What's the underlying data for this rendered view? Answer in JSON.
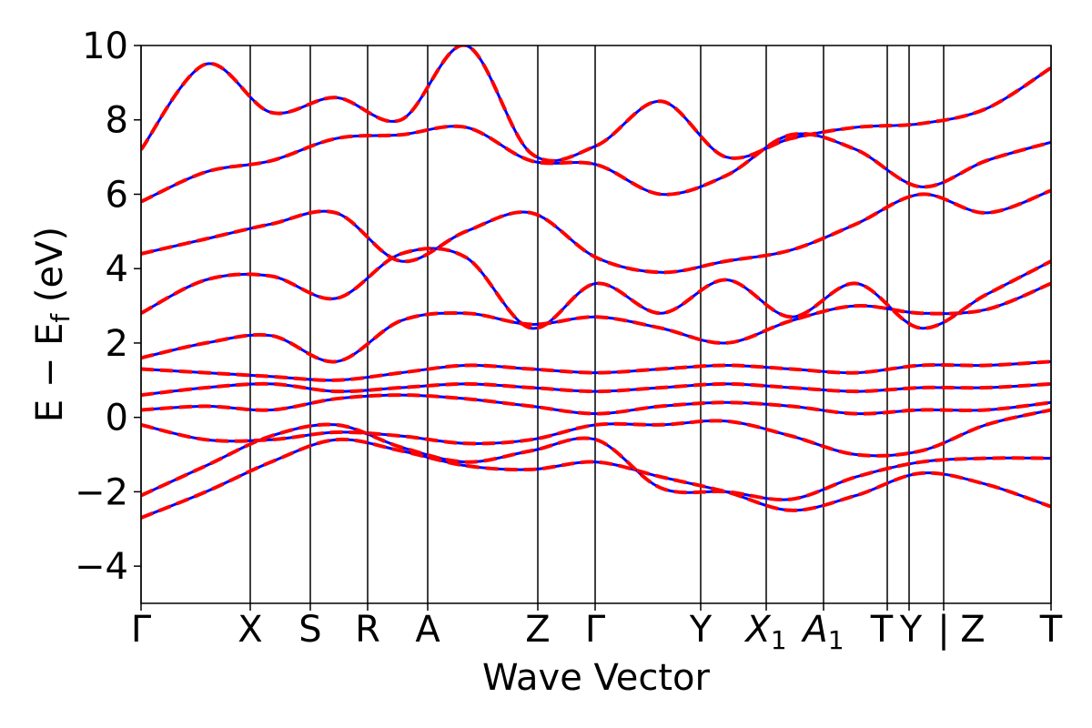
{
  "chart_data": {
    "type": "line",
    "title": "",
    "xlabel": "Wave Vector",
    "ylabel_main": "E − E",
    "ylabel_sub": "f",
    "ylabel_unit": " (eV)",
    "ylim": [
      -5,
      10
    ],
    "yticks": [
      -4,
      -2,
      0,
      2,
      4,
      6,
      8,
      10
    ],
    "ytick_labels": [
      "−4",
      "−2",
      "0",
      "2",
      "4",
      "6",
      "8",
      "10"
    ],
    "xlim": [
      0,
      1
    ],
    "kpoints": [
      {
        "pos": 0.0,
        "label": "Γ",
        "sub": ""
      },
      {
        "pos": 0.12,
        "label": "X",
        "sub": ""
      },
      {
        "pos": 0.186,
        "label": "S",
        "sub": ""
      },
      {
        "pos": 0.249,
        "label": "R",
        "sub": ""
      },
      {
        "pos": 0.315,
        "label": "A",
        "sub": ""
      },
      {
        "pos": 0.436,
        "label": "Z",
        "sub": ""
      },
      {
        "pos": 0.499,
        "label": "Γ",
        "sub": ""
      },
      {
        "pos": 0.615,
        "label": "Y",
        "sub": ""
      },
      {
        "pos": 0.687,
        "label": "X",
        "sub": "1"
      },
      {
        "pos": 0.75,
        "label": "A",
        "sub": "1"
      },
      {
        "pos": 0.82,
        "label": "T",
        "sub": ""
      },
      {
        "pos": 0.844,
        "label": "Y",
        "sub": ""
      },
      {
        "pos": 0.882,
        "label": "Z",
        "sub": ""
      },
      {
        "pos": 1.0,
        "label": "T",
        "sub": ""
      }
    ],
    "path_break": {
      "pos": 0.882,
      "label": "|"
    },
    "grid": false,
    "series": [
      {
        "color": "#ff0000",
        "style": "dashed",
        "bands": [
          [
            -2.7,
            -2.0,
            -1.2,
            -0.6,
            -0.9,
            -1.3,
            -1.4,
            -1.2,
            -1.6,
            -2.0,
            -2.5,
            -2.1,
            -1.5,
            -1.8,
            -2.4
          ],
          [
            -2.1,
            -1.3,
            -0.5,
            -0.2,
            -0.8,
            -1.2,
            -0.9,
            -0.6,
            -1.9,
            -2.0,
            -2.2,
            -1.6,
            -1.2,
            -1.1,
            -1.1
          ],
          [
            -0.2,
            -0.6,
            -0.6,
            -0.4,
            -0.5,
            -0.7,
            -0.6,
            -0.2,
            -0.2,
            -0.1,
            -0.5,
            -1.0,
            -0.9,
            -0.2,
            0.2
          ],
          [
            0.2,
            0.3,
            0.2,
            0.5,
            0.6,
            0.5,
            0.3,
            0.1,
            0.3,
            0.4,
            0.3,
            0.1,
            0.2,
            0.2,
            0.4
          ],
          [
            0.6,
            0.8,
            0.9,
            0.7,
            0.8,
            0.9,
            0.8,
            0.7,
            0.8,
            0.9,
            0.8,
            0.7,
            0.8,
            0.8,
            0.9
          ],
          [
            1.3,
            1.2,
            1.1,
            1.0,
            1.2,
            1.4,
            1.3,
            1.2,
            1.3,
            1.4,
            1.3,
            1.2,
            1.4,
            1.4,
            1.5
          ],
          [
            1.6,
            2.0,
            2.2,
            1.5,
            2.6,
            2.8,
            2.5,
            2.7,
            2.4,
            2.0,
            2.6,
            3.0,
            2.8,
            2.9,
            3.6
          ],
          [
            2.8,
            3.7,
            3.8,
            3.2,
            4.4,
            4.3,
            2.4,
            3.6,
            2.8,
            3.7,
            2.7,
            3.6,
            2.4,
            3.3,
            4.2
          ],
          [
            4.4,
            4.8,
            5.2,
            5.5,
            4.2,
            5.0,
            5.5,
            4.3,
            3.9,
            4.2,
            4.5,
            5.2,
            6.0,
            5.5,
            6.1
          ],
          [
            5.8,
            6.6,
            6.9,
            7.5,
            7.6,
            7.8,
            6.9,
            6.8,
            6.0,
            6.5,
            7.6,
            7.2,
            6.2,
            6.9,
            7.4
          ],
          [
            7.2,
            9.5,
            8.2,
            8.6,
            8.0,
            10.0,
            7.1,
            7.3,
            8.5,
            7.0,
            7.5,
            7.8,
            7.9,
            8.3,
            9.4
          ]
        ]
      },
      {
        "color": "#0000ff",
        "style": "solid",
        "bands": [
          [
            -2.7,
            -2.0,
            -1.2,
            -0.6,
            -0.9,
            -1.3,
            -1.4,
            -1.2,
            -1.6,
            -2.0,
            -2.5,
            -2.1,
            -1.5,
            -1.8,
            -2.4
          ],
          [
            -2.1,
            -1.3,
            -0.5,
            -0.2,
            -0.8,
            -1.2,
            -0.9,
            -0.6,
            -1.9,
            -2.0,
            -2.2,
            -1.6,
            -1.2,
            -1.1,
            -1.1
          ],
          [
            -0.2,
            -0.6,
            -0.6,
            -0.4,
            -0.5,
            -0.7,
            -0.6,
            -0.2,
            -0.2,
            -0.1,
            -0.5,
            -1.0,
            -0.9,
            -0.2,
            0.2
          ],
          [
            0.2,
            0.3,
            0.2,
            0.5,
            0.6,
            0.5,
            0.3,
            0.1,
            0.3,
            0.4,
            0.3,
            0.1,
            0.2,
            0.2,
            0.4
          ],
          [
            0.6,
            0.8,
            0.9,
            0.7,
            0.8,
            0.9,
            0.8,
            0.7,
            0.8,
            0.9,
            0.8,
            0.7,
            0.8,
            0.8,
            0.9
          ],
          [
            1.3,
            1.2,
            1.1,
            1.0,
            1.2,
            1.4,
            1.3,
            1.2,
            1.3,
            1.4,
            1.3,
            1.2,
            1.4,
            1.4,
            1.5
          ],
          [
            1.6,
            2.0,
            2.2,
            1.5,
            2.6,
            2.8,
            2.5,
            2.7,
            2.4,
            2.0,
            2.6,
            3.0,
            2.8,
            2.9,
            3.6
          ],
          [
            2.8,
            3.7,
            3.8,
            3.2,
            4.4,
            4.3,
            2.4,
            3.6,
            2.8,
            3.7,
            2.7,
            3.6,
            2.4,
            3.3,
            4.2
          ],
          [
            4.4,
            4.8,
            5.2,
            5.5,
            4.2,
            5.0,
            5.5,
            4.3,
            3.9,
            4.2,
            4.5,
            5.2,
            6.0,
            5.5,
            6.1
          ],
          [
            5.8,
            6.6,
            6.9,
            7.5,
            7.6,
            7.8,
            6.9,
            6.8,
            6.0,
            6.5,
            7.6,
            7.2,
            6.2,
            6.9,
            7.4
          ],
          [
            7.2,
            9.5,
            8.2,
            8.6,
            8.0,
            10.0,
            7.1,
            7.3,
            8.5,
            7.0,
            7.5,
            7.8,
            7.9,
            8.3,
            9.4
          ]
        ]
      }
    ]
  }
}
